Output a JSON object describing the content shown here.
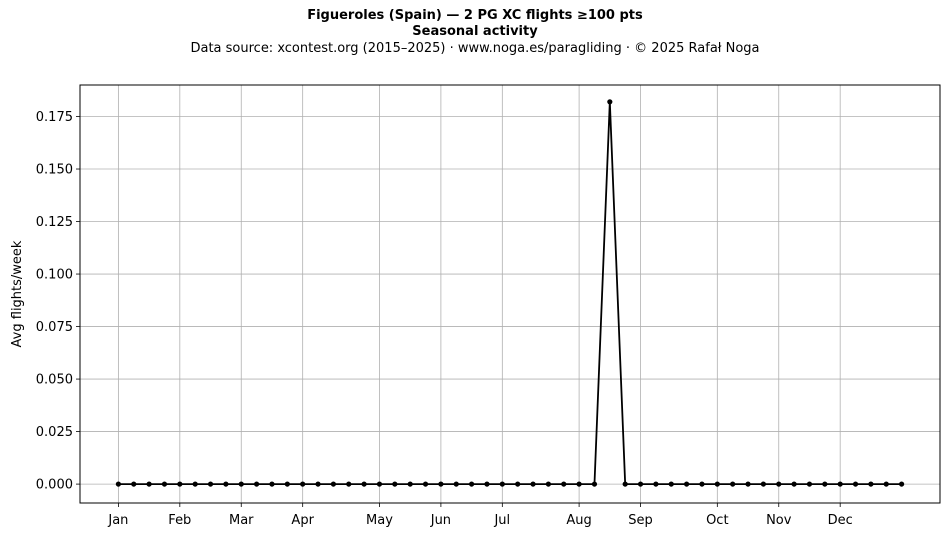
{
  "chart_data": {
    "type": "line",
    "title": "Figueroles (Spain)  —  2 PG XC flights ≥100 pts",
    "title2": "Seasonal activity",
    "subtitle": "Data source: xcontest.org (2015–2025)  ·  www.noga.es/paragliding  ·  © 2025 Rafał Noga",
    "xlabel": "",
    "ylabel": "Avg flights/week",
    "ylim": [
      -0.009,
      0.19
    ],
    "xlim": [
      -2.5,
      53.5
    ],
    "grid": true,
    "line_color": "#000000",
    "month_ticks": [
      {
        "label": "Jan",
        "week": 0
      },
      {
        "label": "Feb",
        "week": 4
      },
      {
        "label": "Mar",
        "week": 8
      },
      {
        "label": "Apr",
        "week": 12
      },
      {
        "label": "May",
        "week": 17
      },
      {
        "label": "Jun",
        "week": 21
      },
      {
        "label": "Jul",
        "week": 25
      },
      {
        "label": "Aug",
        "week": 30
      },
      {
        "label": "Sep",
        "week": 34
      },
      {
        "label": "Oct",
        "week": 39
      },
      {
        "label": "Nov",
        "week": 43
      },
      {
        "label": "Dec",
        "week": 47
      }
    ],
    "y_ticks": [
      {
        "label": "0.000",
        "value": 0.0
      },
      {
        "label": "0.025",
        "value": 0.025
      },
      {
        "label": "0.050",
        "value": 0.05
      },
      {
        "label": "0.075",
        "value": 0.075
      },
      {
        "label": "0.100",
        "value": 0.1
      },
      {
        "label": "0.125",
        "value": 0.125
      },
      {
        "label": "0.150",
        "value": 0.15
      },
      {
        "label": "0.175",
        "value": 0.175
      }
    ],
    "series": [
      {
        "x": [
          0,
          1,
          2,
          3,
          4,
          5,
          6,
          7,
          8,
          9,
          10,
          11,
          12,
          13,
          14,
          15,
          16,
          17,
          18,
          19,
          20,
          21,
          22,
          23,
          24,
          25,
          26,
          27,
          28,
          29,
          30,
          31,
          32,
          33,
          34,
          35,
          36,
          37,
          38,
          39,
          40,
          41,
          42,
          43,
          44,
          45,
          46,
          47,
          48,
          49,
          50,
          51
        ],
        "values": [
          0,
          0,
          0,
          0,
          0,
          0,
          0,
          0,
          0,
          0,
          0,
          0,
          0,
          0,
          0,
          0,
          0,
          0,
          0,
          0,
          0,
          0,
          0,
          0,
          0,
          0,
          0,
          0,
          0,
          0,
          0,
          0,
          0.182,
          0,
          0,
          0,
          0,
          0,
          0,
          0,
          0,
          0,
          0,
          0,
          0,
          0,
          0,
          0,
          0,
          0,
          0,
          0
        ]
      }
    ]
  }
}
